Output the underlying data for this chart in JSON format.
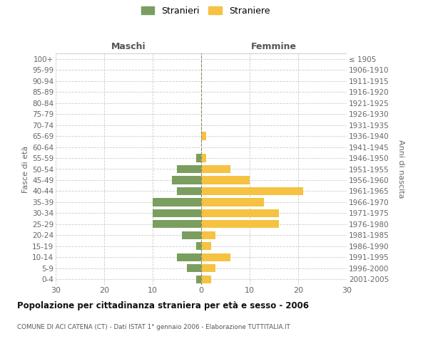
{
  "age_groups": [
    "0-4",
    "5-9",
    "10-14",
    "15-19",
    "20-24",
    "25-29",
    "30-34",
    "35-39",
    "40-44",
    "45-49",
    "50-54",
    "55-59",
    "60-64",
    "65-69",
    "70-74",
    "75-79",
    "80-84",
    "85-89",
    "90-94",
    "95-99",
    "100+"
  ],
  "birth_years": [
    "2001-2005",
    "1996-2000",
    "1991-1995",
    "1986-1990",
    "1981-1985",
    "1976-1980",
    "1971-1975",
    "1966-1970",
    "1961-1965",
    "1956-1960",
    "1951-1955",
    "1946-1950",
    "1941-1945",
    "1936-1940",
    "1931-1935",
    "1926-1930",
    "1921-1925",
    "1916-1920",
    "1911-1915",
    "1906-1910",
    "≤ 1905"
  ],
  "maschi": [
    1,
    3,
    5,
    1,
    4,
    10,
    10,
    10,
    5,
    6,
    5,
    1,
    0,
    0,
    0,
    0,
    0,
    0,
    0,
    0,
    0
  ],
  "femmine": [
    2,
    3,
    6,
    2,
    3,
    16,
    16,
    13,
    21,
    10,
    6,
    1,
    0,
    1,
    0,
    0,
    0,
    0,
    0,
    0,
    0
  ],
  "color_maschi": "#7a9e5f",
  "color_femmine": "#f5c242",
  "title": "Popolazione per cittadinanza straniera per età e sesso - 2006",
  "subtitle": "COMUNE DI ACI CATENA (CT) - Dati ISTAT 1° gennaio 2006 - Elaborazione TUTTITALIA.IT",
  "ylabel_left": "Fasce di età",
  "ylabel_right": "Anni di nascita",
  "xlabel_maschi": "Maschi",
  "xlabel_femmine": "Femmine",
  "legend_maschi": "Stranieri",
  "legend_femmine": "Straniere",
  "xlim": 30,
  "background_color": "#ffffff",
  "grid_color": "#cccccc",
  "bar_height": 0.72
}
